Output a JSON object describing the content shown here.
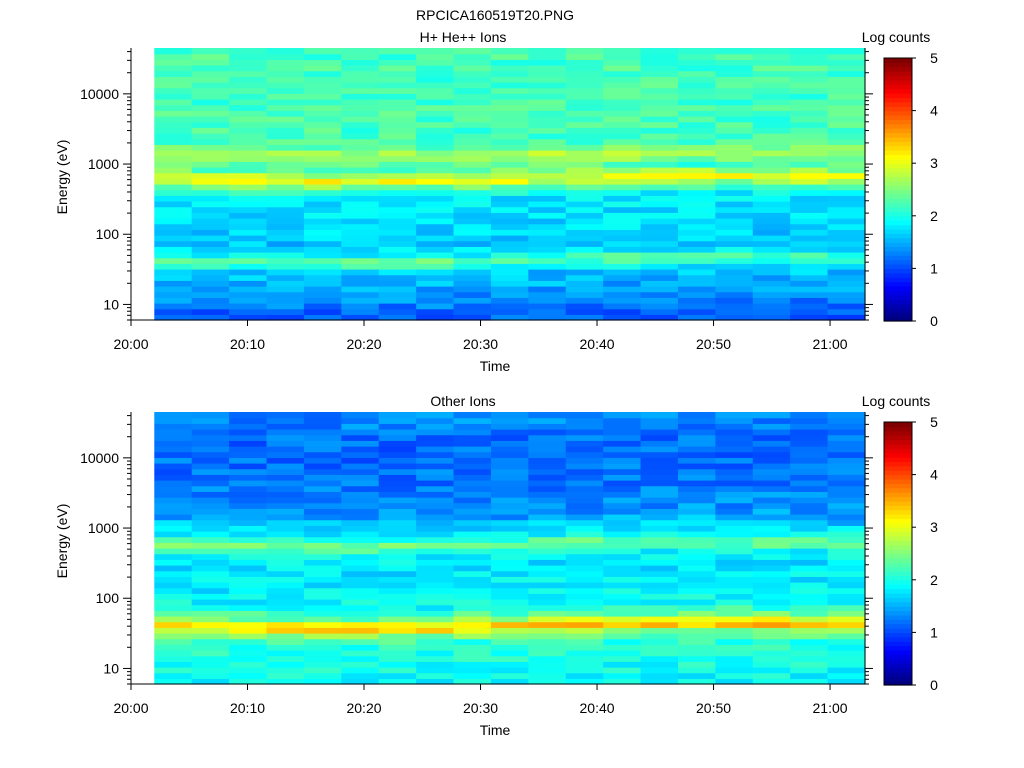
{
  "figure": {
    "title": "RPCICA160519T20.PNG"
  },
  "colormap": {
    "name": "jet",
    "stops": [
      "#00007f",
      "#0000ff",
      "#007fff",
      "#00ffff",
      "#7fff7f",
      "#ffff00",
      "#ff7f00",
      "#ff0000",
      "#7f0000"
    ]
  },
  "chart_data": [
    {
      "type": "heatmap",
      "panel": "top",
      "title": "H+ He++ Ions",
      "xlabel": "Time",
      "ylabel": "Energy (eV)",
      "x_ticks": [
        "20:00",
        "20:10",
        "20:20",
        "20:30",
        "20:40",
        "20:50",
        "21:00"
      ],
      "y_scale": "log",
      "y_ticks": [
        "10",
        "100",
        "1000",
        "10000"
      ],
      "ylim": [
        6,
        45000
      ],
      "data_time_range": [
        "20:02",
        "21:03"
      ],
      "colorbar": {
        "label": "Log counts",
        "range": [
          0,
          5
        ],
        "ticks": [
          "0",
          "1",
          "2",
          "3",
          "4",
          "5"
        ]
      },
      "energy_profile_log_counts": [
        {
          "energy_ev": 8,
          "log_counts": 1.1
        },
        {
          "energy_ev": 12,
          "log_counts": 1.3
        },
        {
          "energy_ev": 20,
          "log_counts": 1.5
        },
        {
          "energy_ev": 30,
          "log_counts": 1.6
        },
        {
          "energy_ev": 40,
          "log_counts": 2.2
        },
        {
          "energy_ev": 45,
          "log_counts": 2.4
        },
        {
          "energy_ev": 55,
          "log_counts": 1.8
        },
        {
          "energy_ev": 80,
          "log_counts": 1.6
        },
        {
          "energy_ev": 120,
          "log_counts": 1.7
        },
        {
          "energy_ev": 200,
          "log_counts": 1.75
        },
        {
          "energy_ev": 350,
          "log_counts": 1.8
        },
        {
          "energy_ev": 500,
          "log_counts": 2.4
        },
        {
          "energy_ev": 600,
          "log_counts": 3.1
        },
        {
          "energy_ev": 700,
          "log_counts": 2.9
        },
        {
          "energy_ev": 900,
          "log_counts": 2.2
        },
        {
          "energy_ev": 1350,
          "log_counts": 2.8
        },
        {
          "energy_ev": 2000,
          "log_counts": 2.2
        },
        {
          "energy_ev": 5000,
          "log_counts": 2.2
        },
        {
          "energy_ev": 15000,
          "log_counts": 2.2
        },
        {
          "energy_ev": 40000,
          "log_counts": 2.2
        }
      ]
    },
    {
      "type": "heatmap",
      "panel": "bottom",
      "title": "Other Ions",
      "xlabel": "Time",
      "ylabel": "Energy (eV)",
      "x_ticks": [
        "20:00",
        "20:10",
        "20:20",
        "20:30",
        "20:40",
        "20:50",
        "21:00"
      ],
      "y_scale": "log",
      "y_ticks": [
        "10",
        "100",
        "1000",
        "10000"
      ],
      "ylim": [
        6,
        45000
      ],
      "data_time_range": [
        "20:02",
        "21:03"
      ],
      "colorbar": {
        "label": "Log counts",
        "range": [
          0,
          5
        ],
        "ticks": [
          "0",
          "1",
          "2",
          "3",
          "4",
          "5"
        ]
      },
      "energy_profile_log_counts": [
        {
          "energy_ev": 8,
          "log_counts": 1.9
        },
        {
          "energy_ev": 15,
          "log_counts": 2.0
        },
        {
          "energy_ev": 25,
          "log_counts": 2.1
        },
        {
          "energy_ev": 33,
          "log_counts": 2.6
        },
        {
          "energy_ev": 40,
          "log_counts": 3.5
        },
        {
          "energy_ev": 47,
          "log_counts": 3.1
        },
        {
          "energy_ev": 55,
          "log_counts": 2.4
        },
        {
          "energy_ev": 80,
          "log_counts": 1.9
        },
        {
          "energy_ev": 150,
          "log_counts": 1.8
        },
        {
          "energy_ev": 300,
          "log_counts": 1.75
        },
        {
          "energy_ev": 450,
          "log_counts": 1.9
        },
        {
          "energy_ev": 600,
          "log_counts": 2.5
        },
        {
          "energy_ev": 800,
          "log_counts": 1.9
        },
        {
          "energy_ev": 1500,
          "log_counts": 1.4
        },
        {
          "energy_ev": 5000,
          "log_counts": 1.2
        },
        {
          "energy_ev": 15000,
          "log_counts": 1.15
        },
        {
          "energy_ev": 40000,
          "log_counts": 1.3
        }
      ]
    }
  ]
}
